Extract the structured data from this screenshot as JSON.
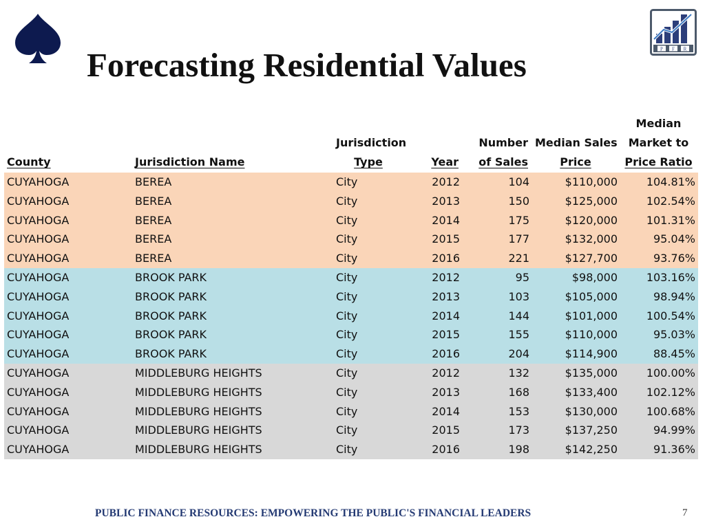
{
  "slide": {
    "title": "Forecasting Residential Values",
    "footer": "PUBLIC FINANCE RESOURCES: EMPOWERING THE PUBLIC'S FINANCIAL LEADERS",
    "page_number": "7",
    "logo_letters": [
      "P",
      "F",
      "R"
    ],
    "colors": {
      "navy": "#0d1a4f",
      "orange_band": "#fad5b8",
      "blue_band": "#b9dfe6",
      "gray_band": "#d8d8d8"
    }
  },
  "table": {
    "headers": {
      "county": [
        "County"
      ],
      "jurisdiction_name": [
        "Jurisdiction Name"
      ],
      "jurisdiction_type": [
        "Jurisdiction",
        "Type"
      ],
      "year": [
        "Year"
      ],
      "number_of_sales": [
        "Number",
        "of Sales"
      ],
      "median_sales_price": [
        "Median Sales",
        "Price"
      ],
      "median_market_ratio": [
        "Median",
        "Market to",
        "Price Ratio"
      ]
    },
    "rows": [
      {
        "county": "CUYAHOGA",
        "name": "BEREA",
        "type": "City",
        "year": "2012",
        "sales": "104",
        "price": "$110,000",
        "ratio": "104.81%"
      },
      {
        "county": "CUYAHOGA",
        "name": "BEREA",
        "type": "City",
        "year": "2013",
        "sales": "150",
        "price": "$125,000",
        "ratio": "102.54%"
      },
      {
        "county": "CUYAHOGA",
        "name": "BEREA",
        "type": "City",
        "year": "2014",
        "sales": "175",
        "price": "$120,000",
        "ratio": "101.31%"
      },
      {
        "county": "CUYAHOGA",
        "name": "BEREA",
        "type": "City",
        "year": "2015",
        "sales": "177",
        "price": "$132,000",
        "ratio": "95.04%"
      },
      {
        "county": "CUYAHOGA",
        "name": "BEREA",
        "type": "City",
        "year": "2016",
        "sales": "221",
        "price": "$127,700",
        "ratio": "93.76%"
      },
      {
        "county": "CUYAHOGA",
        "name": "BROOK PARK",
        "type": "City",
        "year": "2012",
        "sales": "95",
        "price": "$98,000",
        "ratio": "103.16%"
      },
      {
        "county": "CUYAHOGA",
        "name": "BROOK PARK",
        "type": "City",
        "year": "2013",
        "sales": "103",
        "price": "$105,000",
        "ratio": "98.94%"
      },
      {
        "county": "CUYAHOGA",
        "name": "BROOK PARK",
        "type": "City",
        "year": "2014",
        "sales": "144",
        "price": "$101,000",
        "ratio": "100.54%"
      },
      {
        "county": "CUYAHOGA",
        "name": "BROOK PARK",
        "type": "City",
        "year": "2015",
        "sales": "155",
        "price": "$110,000",
        "ratio": "95.03%"
      },
      {
        "county": "CUYAHOGA",
        "name": "BROOK PARK",
        "type": "City",
        "year": "2016",
        "sales": "204",
        "price": "$114,900",
        "ratio": "88.45%"
      },
      {
        "county": "CUYAHOGA",
        "name": "MIDDLEBURG HEIGHTS",
        "type": "City",
        "year": "2012",
        "sales": "132",
        "price": "$135,000",
        "ratio": "100.00%"
      },
      {
        "county": "CUYAHOGA",
        "name": "MIDDLEBURG HEIGHTS",
        "type": "City",
        "year": "2013",
        "sales": "168",
        "price": "$133,400",
        "ratio": "102.12%"
      },
      {
        "county": "CUYAHOGA",
        "name": "MIDDLEBURG HEIGHTS",
        "type": "City",
        "year": "2014",
        "sales": "153",
        "price": "$130,000",
        "ratio": "100.68%"
      },
      {
        "county": "CUYAHOGA",
        "name": "MIDDLEBURG HEIGHTS",
        "type": "City",
        "year": "2015",
        "sales": "173",
        "price": "$137,250",
        "ratio": "94.99%"
      },
      {
        "county": "CUYAHOGA",
        "name": "MIDDLEBURG HEIGHTS",
        "type": "City",
        "year": "2016",
        "sales": "198",
        "price": "$142,250",
        "ratio": "91.36%"
      }
    ]
  }
}
